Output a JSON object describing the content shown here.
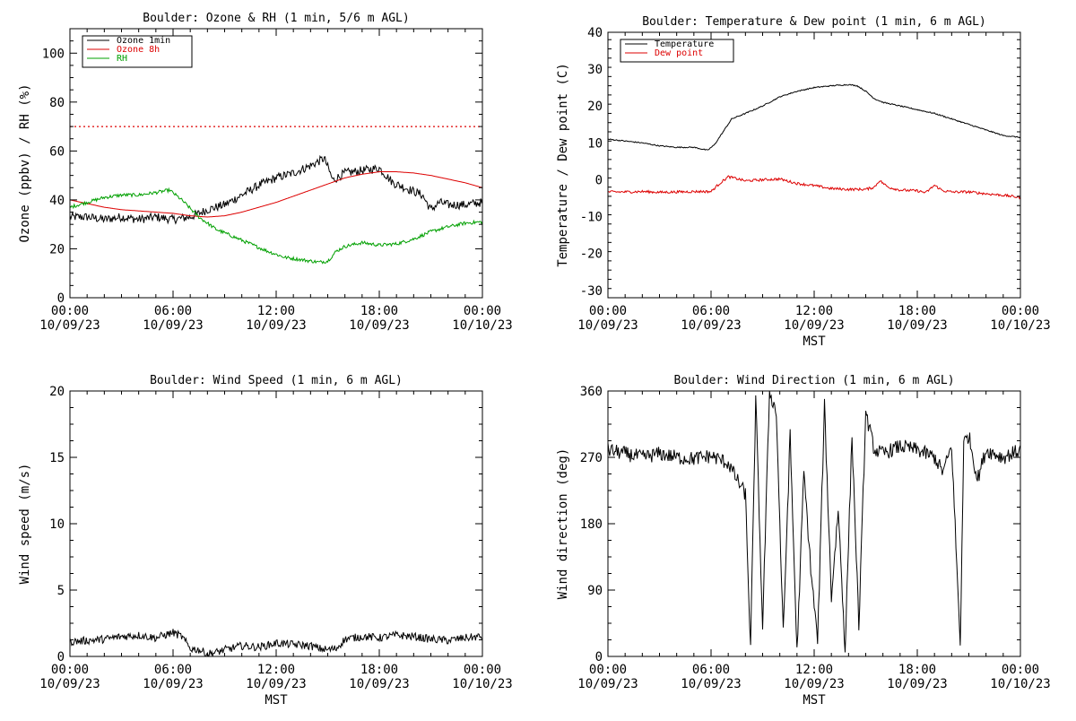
{
  "chart_data": [
    {
      "id": "ozone_rh",
      "type": "line",
      "title": "Boulder: Ozone & RH (1 min, 5/6 m AGL)",
      "xlabel": "",
      "ylabel": "Ozone (ppbv) / RH (%)",
      "xlim": [
        0,
        24
      ],
      "ylim": [
        0,
        110
      ],
      "x_ticks": [
        {
          "v": 0,
          "time": "00:00",
          "date": "10/09/23"
        },
        {
          "v": 6,
          "time": "06:00",
          "date": "10/09/23"
        },
        {
          "v": 12,
          "time": "12:00",
          "date": "10/09/23"
        },
        {
          "v": 18,
          "time": "18:00",
          "date": "10/09/23"
        },
        {
          "v": 24,
          "time": "00:00",
          "date": "10/10/23"
        }
      ],
      "y_ticks": [
        0,
        20,
        40,
        60,
        80,
        100
      ],
      "legend": "top-left",
      "grid": false,
      "reference_lines": [
        {
          "y": 70,
          "color": "#dd0000",
          "style": "dotted"
        }
      ],
      "series": [
        {
          "name": "Ozone 1min",
          "color": "#000000",
          "noise": 1.8,
          "x": [
            0,
            1,
            2,
            3,
            4,
            5,
            6,
            7,
            8,
            9,
            10,
            11,
            12,
            13,
            14,
            14.8,
            15.3,
            16,
            17,
            18,
            18.8,
            19.5,
            20.5,
            21,
            21.5,
            22,
            23,
            24
          ],
          "y": [
            33,
            33,
            32,
            33,
            32,
            33,
            32,
            33,
            36,
            38,
            42,
            46,
            49,
            51,
            54,
            57,
            48,
            51,
            52,
            53,
            47,
            45,
            42,
            36,
            39,
            38,
            38,
            39
          ]
        },
        {
          "name": "Ozone 8h",
          "color": "#dd0000",
          "noise": 0,
          "x": [
            0,
            1,
            2,
            3,
            4,
            5,
            6,
            7,
            8,
            9,
            10,
            11,
            12,
            13,
            14,
            15,
            16,
            17,
            18,
            19,
            20,
            21,
            22,
            23,
            24
          ],
          "y": [
            40,
            38.5,
            37,
            36,
            35.5,
            35,
            34.5,
            33.5,
            33,
            33.5,
            35,
            37,
            39,
            41.5,
            44,
            46.5,
            49,
            50.5,
            51.5,
            51.5,
            51,
            50,
            48.5,
            47,
            45
          ]
        },
        {
          "name": "RH",
          "color": "#00a000",
          "noise": 0.7,
          "x": [
            0,
            1,
            2,
            3,
            4,
            5,
            5.8,
            6.5,
            7.5,
            8.5,
            9.5,
            10.5,
            11.5,
            12.5,
            13.5,
            14.5,
            15,
            15.5,
            16,
            17,
            18,
            19,
            20,
            21,
            22,
            23,
            24
          ],
          "y": [
            37,
            39,
            41,
            42,
            42,
            43,
            44,
            40,
            33,
            28,
            25,
            22,
            19,
            16.5,
            15.5,
            14.5,
            15,
            19,
            21,
            22.5,
            21.5,
            22,
            24,
            27,
            29,
            30.5,
            31
          ]
        }
      ]
    },
    {
      "id": "temp_dew",
      "type": "line",
      "title": "Boulder: Temperature & Dew point (1 min, 6 m AGL)",
      "xlabel": "MST",
      "ylabel": "Temperature / Dew point (C)",
      "xlim": [
        0,
        24
      ],
      "ylim": [
        -32,
        40
      ],
      "x_ticks": [
        {
          "v": 0,
          "time": "00:00",
          "date": "10/09/23"
        },
        {
          "v": 6,
          "time": "06:00",
          "date": "10/09/23"
        },
        {
          "v": 12,
          "time": "12:00",
          "date": "10/09/23"
        },
        {
          "v": 18,
          "time": "18:00",
          "date": "10/09/23"
        },
        {
          "v": 24,
          "time": "00:00",
          "date": "10/10/23"
        }
      ],
      "y_ticks": [
        -30,
        -20,
        -10,
        0,
        10,
        20,
        30,
        40
      ],
      "legend": "top-left",
      "grid": false,
      "reference_lines": [],
      "series": [
        {
          "name": "Temperature",
          "color": "#000000",
          "noise": 0.15,
          "x": [
            0,
            1,
            2,
            3,
            4,
            5,
            5.8,
            6.2,
            6.7,
            7.2,
            8,
            9,
            10,
            11,
            12,
            13,
            14,
            14.5,
            15,
            15.5,
            16,
            17,
            18,
            19,
            20,
            21,
            22,
            23,
            24
          ],
          "y": [
            11,
            10.5,
            10,
            9.2,
            8.8,
            8.8,
            8,
            9.5,
            13,
            16.5,
            18,
            20,
            22.5,
            24,
            25,
            25.5,
            25.8,
            25.5,
            24,
            22,
            21,
            20,
            19,
            18,
            16.5,
            15,
            13.5,
            12,
            11.5
          ]
        },
        {
          "name": "Dew point",
          "color": "#dd0000",
          "noise": 0.35,
          "x": [
            0,
            1,
            2,
            3,
            4,
            5,
            6,
            6.5,
            7,
            7.5,
            8,
            9,
            10,
            11,
            12,
            13,
            14,
            15,
            15.5,
            15.8,
            16.3,
            17,
            18,
            18.5,
            19,
            19.5,
            20,
            21,
            22,
            23,
            24
          ],
          "y": [
            -3.3,
            -3.3,
            -3.2,
            -3.4,
            -3.3,
            -3.2,
            -3.2,
            -1,
            0.8,
            0.3,
            -0.3,
            0,
            0.2,
            -1,
            -1.6,
            -2.4,
            -2.6,
            -2.6,
            -2,
            -0.2,
            -2,
            -2.8,
            -3,
            -3.5,
            -1.5,
            -3,
            -3.3,
            -3.3,
            -3.8,
            -4.2,
            -4.8
          ]
        }
      ]
    },
    {
      "id": "wind_speed",
      "type": "line",
      "title": "Boulder: Wind Speed (1 min, 6 m AGL)",
      "xlabel": "MST",
      "ylabel": "Wind speed (m/s)",
      "xlim": [
        0,
        24
      ],
      "ylim": [
        0,
        20
      ],
      "x_ticks": [
        {
          "v": 0,
          "time": "00:00",
          "date": "10/09/23"
        },
        {
          "v": 6,
          "time": "06:00",
          "date": "10/09/23"
        },
        {
          "v": 12,
          "time": "12:00",
          "date": "10/09/23"
        },
        {
          "v": 18,
          "time": "18:00",
          "date": "10/09/23"
        },
        {
          "v": 24,
          "time": "00:00",
          "date": "10/10/23"
        }
      ],
      "y_ticks": [
        0,
        5,
        10,
        15,
        20
      ],
      "legend": "none",
      "grid": false,
      "reference_lines": [],
      "series": [
        {
          "name": "",
          "color": "#000000",
          "noise": 0.3,
          "x": [
            0,
            1,
            2,
            3,
            4,
            5,
            6,
            6.5,
            7,
            7.5,
            8,
            8.5,
            9,
            10,
            11,
            12,
            13,
            14,
            14.5,
            15,
            15.5,
            16,
            17,
            18,
            19,
            20,
            21,
            22,
            23,
            24
          ],
          "y": [
            1.1,
            1.2,
            1.3,
            1.5,
            1.6,
            1.4,
            1.8,
            1.5,
            0.6,
            0.5,
            0.2,
            0.3,
            0.5,
            0.8,
            0.7,
            1,
            0.9,
            0.8,
            0.6,
            0.5,
            0.6,
            1.3,
            1.5,
            1.4,
            1.6,
            1.5,
            1.3,
            1.2,
            1.4,
            1.5
          ]
        }
      ]
    },
    {
      "id": "wind_dir",
      "type": "line",
      "title": "Boulder: Wind Direction (1 min, 6 m AGL)",
      "xlabel": "MST",
      "ylabel": "Wind direction (deg)",
      "xlim": [
        0,
        24
      ],
      "ylim": [
        0,
        360
      ],
      "x_ticks": [
        {
          "v": 0,
          "time": "00:00",
          "date": "10/09/23"
        },
        {
          "v": 6,
          "time": "06:00",
          "date": "10/09/23"
        },
        {
          "v": 12,
          "time": "12:00",
          "date": "10/09/23"
        },
        {
          "v": 18,
          "time": "18:00",
          "date": "10/09/23"
        },
        {
          "v": 24,
          "time": "00:00",
          "date": "10/10/23"
        }
      ],
      "y_ticks": [
        0,
        90,
        180,
        270,
        360
      ],
      "legend": "none",
      "grid": false,
      "reference_lines": [],
      "series": [
        {
          "name": "",
          "color": "#000000",
          "noise": 10,
          "x": [
            0,
            1,
            2,
            3,
            4,
            5,
            6,
            7,
            7.5,
            8,
            8.3,
            8.6,
            9,
            9.4,
            9.8,
            10.2,
            10.6,
            11,
            11.4,
            11.8,
            12.2,
            12.6,
            13,
            13.4,
            13.8,
            14.2,
            14.6,
            15,
            15.5,
            16,
            17,
            18,
            19,
            19.5,
            20,
            20.5,
            20.7,
            21,
            21.5,
            22,
            23,
            24
          ],
          "y": [
            280,
            275,
            270,
            275,
            270,
            268,
            272,
            262,
            240,
            220,
            10,
            350,
            40,
            360,
            330,
            30,
            300,
            5,
            250,
            120,
            20,
            340,
            80,
            200,
            10,
            300,
            40,
            330,
            280,
            275,
            285,
            280,
            270,
            250,
            285,
            15,
            290,
            300,
            240,
            280,
            270,
            280
          ]
        }
      ]
    }
  ]
}
